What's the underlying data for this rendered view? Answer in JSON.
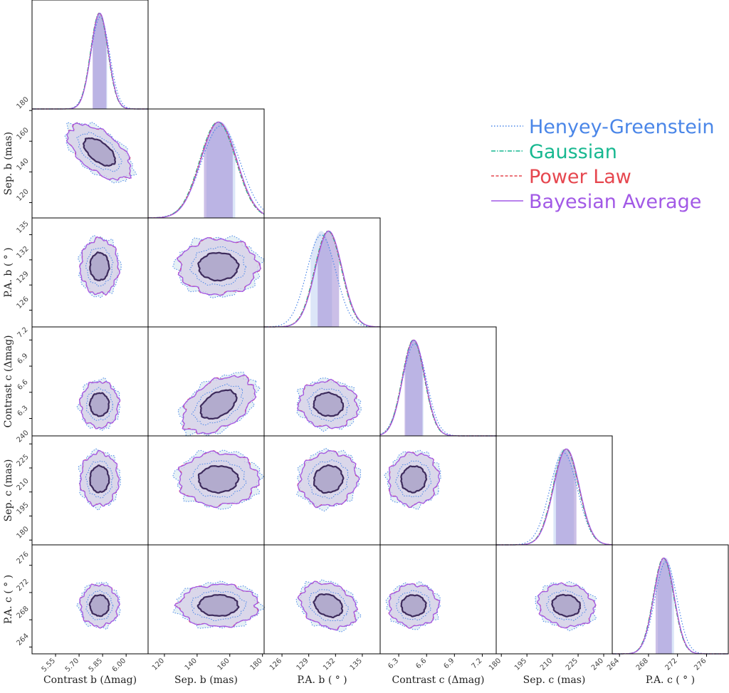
{
  "colors": {
    "hg": "#4a86e8",
    "gauss": "#17b890",
    "power": "#e6474f",
    "bayes": "#a259e6",
    "fill": "#b9b3d6",
    "frame": "#000000"
  },
  "legend": {
    "items": [
      {
        "name": "Henyey-Greenstein",
        "color": "#4a86e8",
        "style": "dotted"
      },
      {
        "name": "Gaussian",
        "color": "#17b890",
        "style": "dashdot"
      },
      {
        "name": "Power Law",
        "color": "#e6474f",
        "style": "dashed"
      },
      {
        "name": "Bayesian Average",
        "color": "#a259e6",
        "style": "solid"
      }
    ]
  },
  "chart_data": {
    "type": "corner",
    "legend_position": "top-right",
    "params": [
      {
        "label": "Contrast b (Δmag)",
        "ylabel": "",
        "range": [
          5.4,
          6.14
        ],
        "ticks": [
          "5.55",
          "5.70",
          "5.85",
          "6.00"
        ],
        "tickvals": [
          5.55,
          5.7,
          5.85,
          6.0
        ],
        "mean": 5.83,
        "sd": 0.055,
        "hg_shift": 0.005
      },
      {
        "label": "Sep. b (mas)",
        "ylabel": "Sep. b (mas)",
        "range": [
          110,
          181
        ],
        "ticks": [
          "120",
          "140",
          "160",
          "180"
        ],
        "tickvals": [
          120,
          140,
          160,
          180
        ],
        "mean": 153,
        "sd": 11,
        "hg_shift": 1.5
      },
      {
        "label": "P.A. b ( ° )",
        "ylabel": "P.A. b ( ° )",
        "range": [
          124,
          137
        ],
        "ticks": [
          "126",
          "129",
          "132",
          "135"
        ],
        "tickvals": [
          126,
          129,
          132,
          135
        ],
        "mean": 131.2,
        "sd": 1.5,
        "hg_shift": -0.8
      },
      {
        "label": "Contrast c (Δmag)",
        "ylabel": "Contrast c (Δmag)",
        "range": [
          6.1,
          7.35
        ],
        "ticks": [
          "6.3",
          "6.6",
          "6.9",
          "7.2"
        ],
        "tickvals": [
          6.3,
          6.6,
          6.9,
          7.2
        ],
        "mean": 6.46,
        "sd": 0.12,
        "hg_shift": 0.01
      },
      {
        "label": "Sep. c (mas)",
        "ylabel": "Sep. c (mas)",
        "range": [
          177,
          245
        ],
        "ticks": [
          "180",
          "195",
          "210",
          "225",
          "240"
        ],
        "tickvals": [
          180,
          195,
          210,
          225,
          240
        ],
        "mean": 218,
        "sd": 7.5,
        "hg_shift": -1.5
      },
      {
        "label": "P.A. c ( ° )",
        "ylabel": "P.A. c ( ° )",
        "range": [
          263,
          279
        ],
        "ticks": [
          "264",
          "268",
          "272",
          "276"
        ],
        "tickvals": [
          264,
          268,
          272,
          276
        ],
        "mean": 270.1,
        "sd": 1.4,
        "hg_shift": 0.3
      }
    ],
    "series": [
      {
        "name": "Henyey-Greenstein"
      },
      {
        "name": "Gaussian"
      },
      {
        "name": "Power Law"
      },
      {
        "name": "Bayesian Average"
      }
    ]
  }
}
